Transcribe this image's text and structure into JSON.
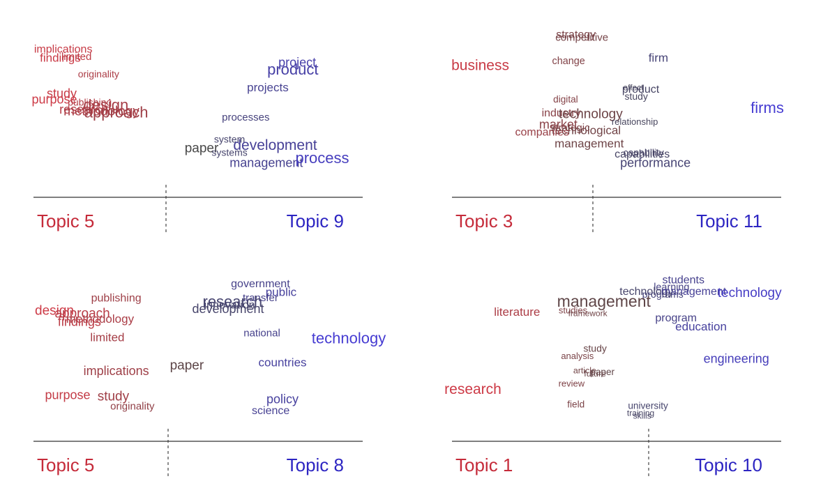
{
  "chart_data": [
    {
      "type": "scatter",
      "left_topic": "Topic 5",
      "right_topic": "Topic 9",
      "words": [
        {
          "t": "implications",
          "x": -0.94,
          "y": 0.88,
          "s": 0.4
        },
        {
          "t": "findings",
          "x": -0.96,
          "y": 0.82,
          "s": 0.45
        },
        {
          "t": "limited",
          "x": -0.85,
          "y": 0.83,
          "s": 0.35
        },
        {
          "t": "originality",
          "x": -0.7,
          "y": 0.71,
          "s": 0.3
        },
        {
          "t": "study",
          "x": -0.95,
          "y": 0.58,
          "s": 0.5
        },
        {
          "t": "purpose",
          "x": -1.0,
          "y": 0.54,
          "s": 0.5
        },
        {
          "t": "publishing",
          "x": -0.76,
          "y": 0.52,
          "s": 0.3
        },
        {
          "t": "research",
          "x": -0.8,
          "y": 0.47,
          "s": 0.5
        },
        {
          "t": "design",
          "x": -0.65,
          "y": 0.5,
          "s": 0.7
        },
        {
          "t": "methodology",
          "x": -0.68,
          "y": 0.46,
          "s": 0.55
        },
        {
          "t": "approach",
          "x": -0.58,
          "y": 0.45,
          "s": 0.7
        },
        {
          "t": "paper",
          "x": 0.0,
          "y": 0.21,
          "s": 0.55
        },
        {
          "t": "processes",
          "x": 0.3,
          "y": 0.42,
          "s": 0.35
        },
        {
          "t": "project",
          "x": 0.65,
          "y": 0.79,
          "s": 0.5
        },
        {
          "t": "product",
          "x": 0.62,
          "y": 0.74,
          "s": 0.7
        },
        {
          "t": "projects",
          "x": 0.45,
          "y": 0.62,
          "s": 0.45
        },
        {
          "t": "system",
          "x": 0.19,
          "y": 0.27,
          "s": 0.3
        },
        {
          "t": "systems",
          "x": 0.19,
          "y": 0.18,
          "s": 0.3
        },
        {
          "t": "development",
          "x": 0.5,
          "y": 0.23,
          "s": 0.65
        },
        {
          "t": "management",
          "x": 0.44,
          "y": 0.11,
          "s": 0.5
        },
        {
          "t": "process",
          "x": 0.82,
          "y": 0.14,
          "s": 0.7
        }
      ]
    },
    {
      "type": "scatter",
      "left_topic": "Topic 3",
      "right_topic": "Topic 11",
      "words": [
        {
          "t": "strategy",
          "x": -0.3,
          "y": 0.98,
          "s": 0.4
        },
        {
          "t": "competitive",
          "x": -0.26,
          "y": 0.96,
          "s": 0.35
        },
        {
          "t": "business",
          "x": -0.95,
          "y": 0.77,
          "s": 0.65
        },
        {
          "t": "change",
          "x": -0.35,
          "y": 0.8,
          "s": 0.32
        },
        {
          "t": "firm",
          "x": 0.26,
          "y": 0.82,
          "s": 0.45
        },
        {
          "t": "effect",
          "x": 0.09,
          "y": 0.62,
          "s": 0.2
        },
        {
          "t": "product",
          "x": 0.14,
          "y": 0.61,
          "s": 0.4
        },
        {
          "t": "study",
          "x": 0.11,
          "y": 0.56,
          "s": 0.3
        },
        {
          "t": "digital",
          "x": -0.37,
          "y": 0.54,
          "s": 0.28
        },
        {
          "t": "industry",
          "x": -0.4,
          "y": 0.45,
          "s": 0.4
        },
        {
          "t": "technology",
          "x": -0.2,
          "y": 0.44,
          "s": 0.55
        },
        {
          "t": "relationship",
          "x": 0.1,
          "y": 0.39,
          "s": 0.25
        },
        {
          "t": "firms",
          "x": 1.0,
          "y": 0.48,
          "s": 0.7
        },
        {
          "t": "market",
          "x": -0.42,
          "y": 0.37,
          "s": 0.5
        },
        {
          "t": "strategic",
          "x": -0.34,
          "y": 0.35,
          "s": 0.35
        },
        {
          "t": "technological",
          "x": -0.23,
          "y": 0.33,
          "s": 0.45
        },
        {
          "t": "companies",
          "x": -0.53,
          "y": 0.32,
          "s": 0.4
        },
        {
          "t": "management",
          "x": -0.21,
          "y": 0.24,
          "s": 0.45
        },
        {
          "t": "capability",
          "x": 0.16,
          "y": 0.18,
          "s": 0.3
        },
        {
          "t": "capabilities",
          "x": 0.15,
          "y": 0.17,
          "s": 0.4
        },
        {
          "t": "performance",
          "x": 0.24,
          "y": 0.11,
          "s": 0.5
        }
      ]
    },
    {
      "type": "scatter",
      "left_topic": "Topic 5",
      "right_topic": "Topic 8",
      "words": [
        {
          "t": "government",
          "x": 0.4,
          "y": 0.99,
          "s": 0.4
        },
        {
          "t": "public",
          "x": 0.54,
          "y": 0.93,
          "s": 0.45
        },
        {
          "t": "publishing",
          "x": -0.58,
          "y": 0.89,
          "s": 0.4
        },
        {
          "t": "transfer",
          "x": 0.4,
          "y": 0.89,
          "s": 0.35
        },
        {
          "t": "research",
          "x": 0.21,
          "y": 0.86,
          "s": 0.7
        },
        {
          "t": "innovation",
          "x": 0.19,
          "y": 0.84,
          "s": 0.4
        },
        {
          "t": "development",
          "x": 0.18,
          "y": 0.81,
          "s": 0.5
        },
        {
          "t": "design",
          "x": -1.0,
          "y": 0.8,
          "s": 0.55
        },
        {
          "t": "approach",
          "x": -0.81,
          "y": 0.78,
          "s": 0.55
        },
        {
          "t": "methodology",
          "x": -0.69,
          "y": 0.74,
          "s": 0.45
        },
        {
          "t": "findings",
          "x": -0.83,
          "y": 0.72,
          "s": 0.5
        },
        {
          "t": "national",
          "x": 0.41,
          "y": 0.64,
          "s": 0.35
        },
        {
          "t": "limited",
          "x": -0.64,
          "y": 0.61,
          "s": 0.45
        },
        {
          "t": "technology",
          "x": 1.0,
          "y": 0.6,
          "s": 0.7
        },
        {
          "t": "countries",
          "x": 0.55,
          "y": 0.43,
          "s": 0.45
        },
        {
          "t": "paper",
          "x": -0.1,
          "y": 0.41,
          "s": 0.55
        },
        {
          "t": "implications",
          "x": -0.58,
          "y": 0.37,
          "s": 0.5
        },
        {
          "t": "purpose",
          "x": -0.91,
          "y": 0.2,
          "s": 0.5
        },
        {
          "t": "study",
          "x": -0.6,
          "y": 0.19,
          "s": 0.55
        },
        {
          "t": "policy",
          "x": 0.55,
          "y": 0.17,
          "s": 0.5
        },
        {
          "t": "originality",
          "x": -0.47,
          "y": 0.12,
          "s": 0.35
        },
        {
          "t": "science",
          "x": 0.47,
          "y": 0.09,
          "s": 0.4
        }
      ]
    },
    {
      "type": "scatter",
      "left_topic": "Topic 1",
      "right_topic": "Topic 10",
      "words": [
        {
          "t": "students",
          "x": 0.43,
          "y": 0.98,
          "s": 0.4
        },
        {
          "t": "learning",
          "x": 0.35,
          "y": 0.93,
          "s": 0.32
        },
        {
          "t": "technology",
          "x": 0.18,
          "y": 0.9,
          "s": 0.4
        },
        {
          "t": "management",
          "x": 0.5,
          "y": 0.9,
          "s": 0.4
        },
        {
          "t": "technology",
          "x": 0.88,
          "y": 0.89,
          "s": 0.55
        },
        {
          "t": "programs",
          "x": 0.29,
          "y": 0.88,
          "s": 0.3
        },
        {
          "t": "management",
          "x": -0.11,
          "y": 0.83,
          "s": 0.75
        },
        {
          "t": "literature",
          "x": -0.7,
          "y": 0.76,
          "s": 0.45
        },
        {
          "t": "studies",
          "x": -0.32,
          "y": 0.77,
          "s": 0.25
        },
        {
          "t": "framework",
          "x": -0.22,
          "y": 0.75,
          "s": 0.2
        },
        {
          "t": "program",
          "x": 0.38,
          "y": 0.72,
          "s": 0.4
        },
        {
          "t": "education",
          "x": 0.55,
          "y": 0.66,
          "s": 0.45
        },
        {
          "t": "study",
          "x": -0.17,
          "y": 0.51,
          "s": 0.3
        },
        {
          "t": "analysis",
          "x": -0.29,
          "y": 0.46,
          "s": 0.25
        },
        {
          "t": "engineering",
          "x": 0.79,
          "y": 0.44,
          "s": 0.5
        },
        {
          "t": "article",
          "x": -0.24,
          "y": 0.36,
          "s": 0.22
        },
        {
          "t": "paper",
          "x": -0.12,
          "y": 0.35,
          "s": 0.28
        },
        {
          "t": "future",
          "x": -0.17,
          "y": 0.34,
          "s": 0.22
        },
        {
          "t": "review",
          "x": -0.33,
          "y": 0.27,
          "s": 0.25
        },
        {
          "t": "research",
          "x": -1.0,
          "y": 0.23,
          "s": 0.65
        },
        {
          "t": "field",
          "x": -0.3,
          "y": 0.13,
          "s": 0.28
        },
        {
          "t": "university",
          "x": 0.19,
          "y": 0.12,
          "s": 0.28
        },
        {
          "t": "training",
          "x": 0.14,
          "y": 0.07,
          "s": 0.2
        },
        {
          "t": "skills",
          "x": 0.15,
          "y": 0.05,
          "s": 0.2
        }
      ]
    }
  ]
}
